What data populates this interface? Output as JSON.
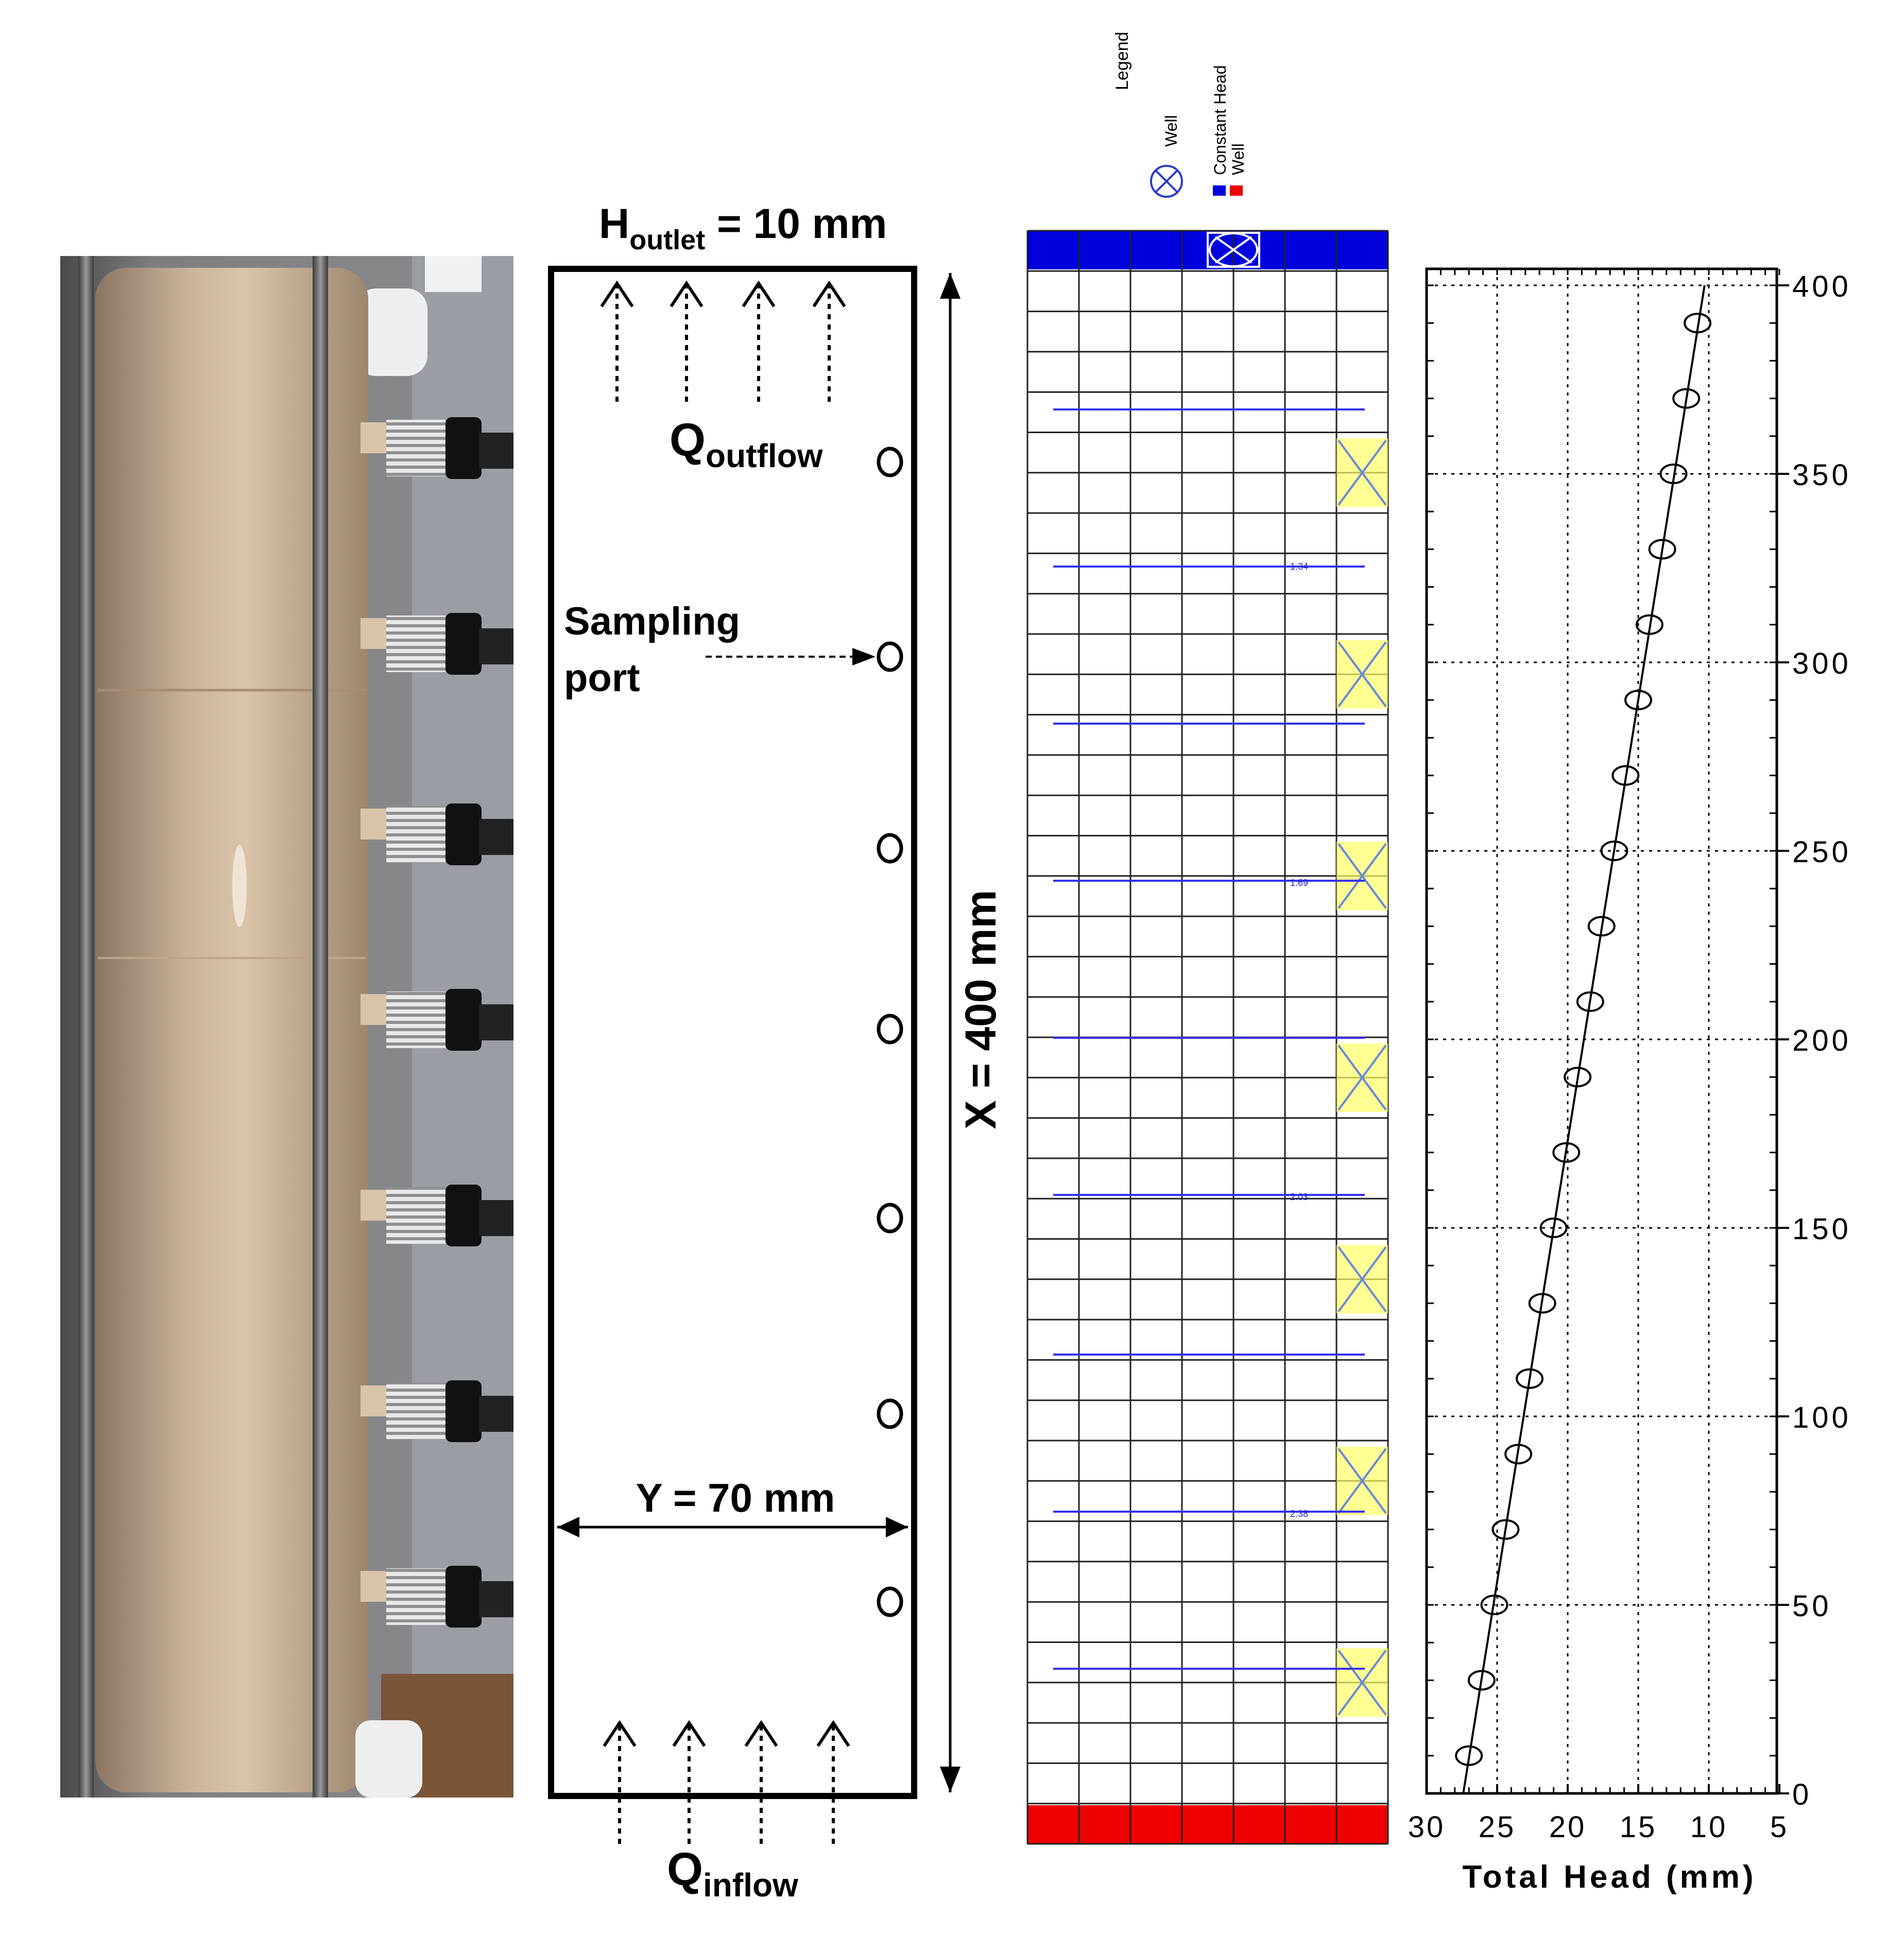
{
  "schematic": {
    "outlet_main": "H",
    "outlet_sub": "outlet",
    "outlet_rest": " = 10 mm",
    "outflow_main": "Q",
    "outflow_sub": "outflow",
    "inflow_main": "Q",
    "inflow_sub": "inflow",
    "sampling_line1": "Sampling",
    "sampling_line2": "port",
    "length_label": "X = 400 mm",
    "width_label": "Y = 70 mm"
  },
  "grid_model": {
    "legend_title": "Legend",
    "legend_items": [
      "Well",
      "Constant Head",
      "Well"
    ],
    "contour_labels": [
      "1.34",
      "1.69",
      "2.03",
      "2.38"
    ],
    "colors": {
      "top_boundary": "#0000dd",
      "bottom_boundary": "#ee0000",
      "contour": "#3333ee",
      "well_fill": "#ffff66"
    }
  },
  "chart_data": {
    "type": "scatter",
    "title": "",
    "xlabel": "Total Head (mm)",
    "ylabel": "",
    "xlim": [
      30,
      5
    ],
    "ylim": [
      0,
      400
    ],
    "x_ticks": [
      "30",
      "25",
      "20",
      "15",
      "10",
      "5"
    ],
    "y_ticks": [
      "400",
      "350",
      "300",
      "250",
      "200",
      "150",
      "100",
      "50",
      "0"
    ],
    "y_axis_side": "right",
    "grid": true,
    "series": [
      {
        "kind": "points",
        "marker": "open-circle",
        "x": [
          27.0,
          26.1,
          25.2,
          24.4,
          23.5,
          22.7,
          21.8,
          21.0,
          20.1,
          19.3,
          18.4,
          17.6,
          16.7,
          15.9,
          15.0,
          14.2,
          13.3,
          12.5,
          11.6,
          10.8
        ],
        "y": [
          10,
          30,
          50,
          70,
          90,
          110,
          130,
          150,
          170,
          190,
          210,
          230,
          250,
          270,
          290,
          310,
          330,
          350,
          370,
          390
        ]
      },
      {
        "kind": "line",
        "x": [
          27.4,
          10.3
        ],
        "y": [
          0,
          400
        ]
      }
    ]
  }
}
